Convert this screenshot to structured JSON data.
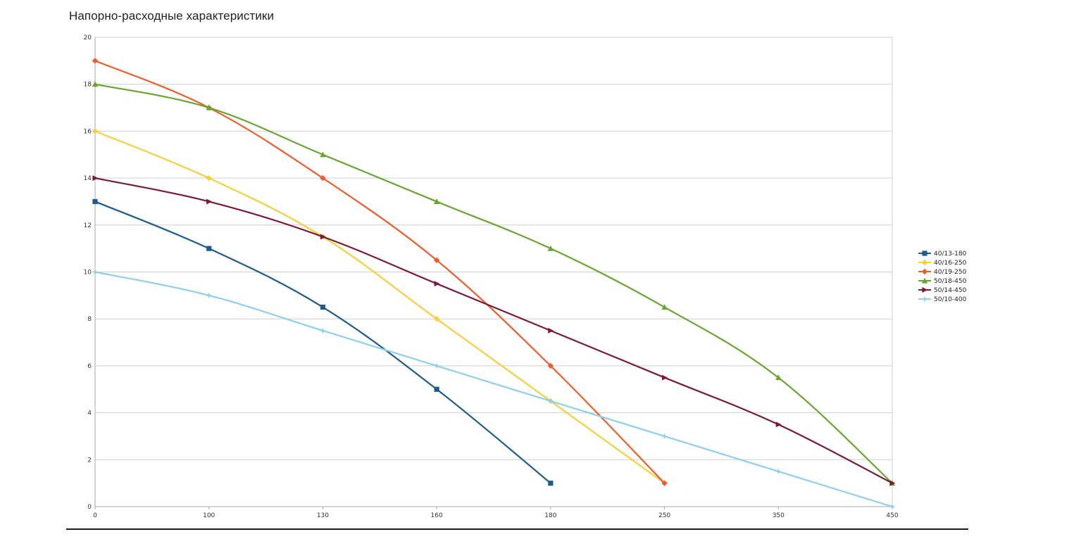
{
  "page": {
    "title": "Напорно-расходные характеристики"
  },
  "chart_data": {
    "type": "line",
    "title": "",
    "xlabel": "",
    "ylabel": "",
    "categories": [
      "0",
      "100",
      "130",
      "160",
      "180",
      "250",
      "350",
      "450"
    ],
    "ylim": [
      0,
      20
    ],
    "yticks": [
      0,
      2,
      4,
      6,
      8,
      10,
      12,
      14,
      16,
      18,
      20
    ],
    "grid": true,
    "legend": "right",
    "series": [
      {
        "name": "40/13-180",
        "color": "#1f5b8c",
        "marker": "square",
        "values": [
          13,
          11,
          8.5,
          5,
          1,
          null,
          null,
          null
        ]
      },
      {
        "name": "40/16-250",
        "color": "#f5cf3c",
        "marker": "diamond",
        "values": [
          16,
          14,
          11.5,
          8,
          4.5,
          1,
          null,
          null
        ]
      },
      {
        "name": "40/19-250",
        "color": "#ec5c2c",
        "marker": "diamond",
        "values": [
          19,
          17,
          14,
          10.5,
          6,
          1,
          null,
          null
        ]
      },
      {
        "name": "50/18-450",
        "color": "#6aa534",
        "marker": "triangle-up",
        "values": [
          18,
          17,
          15,
          13,
          11,
          8.5,
          5.5,
          1
        ]
      },
      {
        "name": "50/14-450",
        "color": "#7b1a34",
        "marker": "triangle-right",
        "values": [
          14,
          13,
          11.5,
          9.5,
          7.5,
          5.5,
          3.5,
          1
        ]
      },
      {
        "name": "50/10-400",
        "color": "#8ecfee",
        "marker": "star",
        "values": [
          10,
          9,
          7.5,
          6,
          4.5,
          3,
          1.5,
          0
        ]
      }
    ]
  }
}
